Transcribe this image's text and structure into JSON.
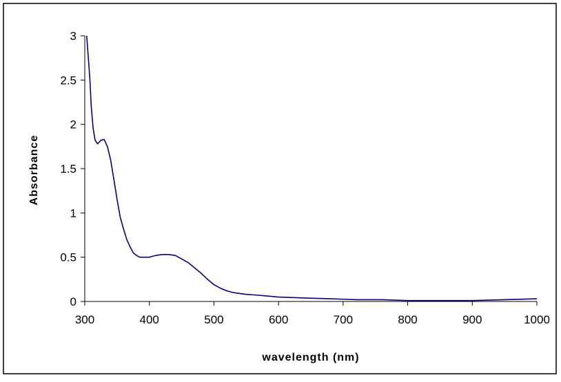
{
  "chart_data": {
    "type": "line",
    "title": "",
    "xlabel": "wavelength (nm)",
    "ylabel": "Absorbance",
    "xlim": [
      300,
      1000
    ],
    "ylim": [
      0,
      3
    ],
    "x_ticks": [
      "300",
      "400",
      "500",
      "600",
      "700",
      "800",
      "900",
      "1000"
    ],
    "y_ticks": [
      "0",
      "0.5",
      "1",
      "1.5",
      "2",
      "2.5",
      "3"
    ],
    "grid": false,
    "legend": "none",
    "series": [
      {
        "color": "#000080",
        "x": [
          303,
          305,
          308,
          310,
          313,
          316,
          320,
          325,
          330,
          335,
          340,
          345,
          350,
          355,
          360,
          365,
          370,
          375,
          380,
          385,
          390,
          395,
          400,
          405,
          410,
          420,
          430,
          440,
          450,
          460,
          470,
          480,
          490,
          500,
          510,
          520,
          530,
          540,
          550,
          570,
          600,
          640,
          680,
          720,
          760,
          800,
          850,
          880,
          900,
          950,
          1000
        ],
        "y": [
          3.0,
          2.8,
          2.5,
          2.2,
          1.95,
          1.82,
          1.78,
          1.82,
          1.83,
          1.75,
          1.6,
          1.38,
          1.15,
          0.95,
          0.82,
          0.7,
          0.62,
          0.55,
          0.52,
          0.5,
          0.5,
          0.5,
          0.5,
          0.51,
          0.52,
          0.53,
          0.53,
          0.52,
          0.48,
          0.44,
          0.38,
          0.32,
          0.25,
          0.19,
          0.15,
          0.12,
          0.1,
          0.09,
          0.08,
          0.07,
          0.05,
          0.04,
          0.03,
          0.02,
          0.02,
          0.01,
          0.01,
          0.01,
          0.01,
          0.02,
          0.03
        ]
      }
    ]
  },
  "colors": {
    "series": "#000080",
    "axis": "#000000",
    "frame": "#000000",
    "background": "#ffffff"
  }
}
